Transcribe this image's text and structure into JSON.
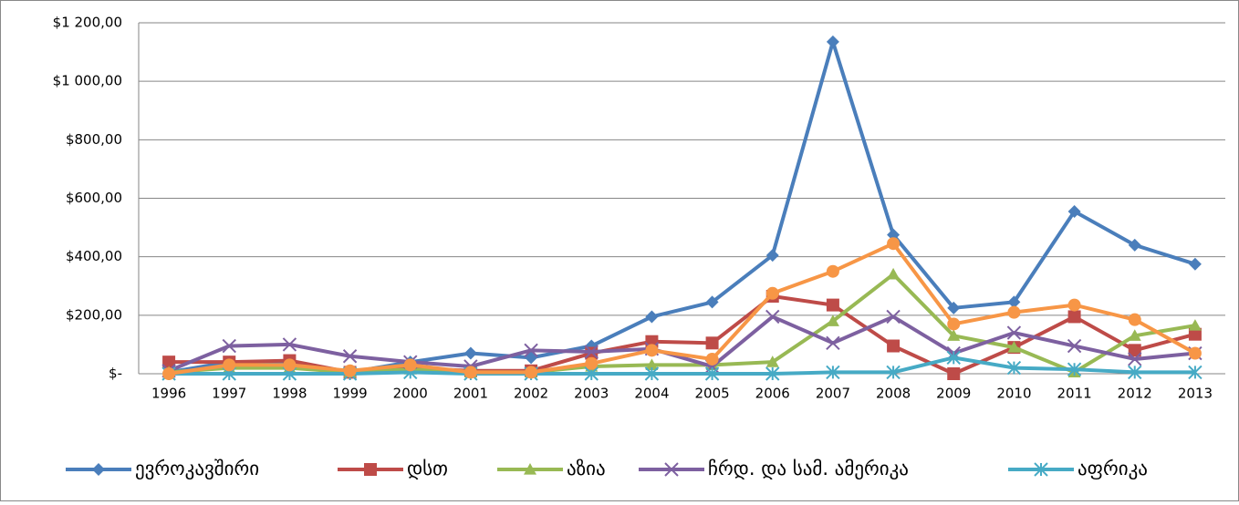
{
  "chart_data": {
    "type": "line",
    "categories": [
      "1996",
      "1997",
      "1998",
      "1999",
      "2000",
      "2001",
      "2002",
      "2003",
      "2004",
      "2005",
      "2006",
      "2007",
      "2008",
      "2009",
      "2010",
      "2011",
      "2012",
      "2013"
    ],
    "series": [
      {
        "name": "ევროკავშირი",
        "color": "#4a7ebb",
        "marker": "diamond",
        "values": [
          5,
          40,
          40,
          5,
          40,
          70,
          55,
          95,
          195,
          245,
          405,
          1135,
          475,
          225,
          245,
          555,
          440,
          375
        ]
      },
      {
        "name": "დსთ",
        "color": "#be4b48",
        "marker": "square",
        "values": [
          40,
          40,
          45,
          5,
          20,
          10,
          10,
          70,
          110,
          105,
          265,
          235,
          95,
          0,
          90,
          195,
          80,
          135
        ]
      },
      {
        "name": "აზია",
        "color": "#98b954",
        "marker": "triangle",
        "values": [
          5,
          20,
          20,
          5,
          15,
          5,
          5,
          25,
          30,
          30,
          40,
          180,
          340,
          130,
          90,
          5,
          130,
          165
        ]
      },
      {
        "name": "ჩრდ. და სამ. ამერიკა",
        "color": "#7d60a0",
        "marker": "x",
        "values": [
          10,
          95,
          100,
          60,
          40,
          25,
          80,
          75,
          85,
          25,
          195,
          105,
          195,
          70,
          140,
          95,
          50,
          70
        ]
      },
      {
        "name": "აფრიკა",
        "color": "#46aac5",
        "marker": "star",
        "values": [
          0,
          0,
          0,
          0,
          5,
          0,
          0,
          0,
          0,
          0,
          0,
          5,
          5,
          55,
          20,
          15,
          5,
          5
        ]
      },
      {
        "color": "#f79646",
        "marker": "circle",
        "values": [
          0,
          30,
          30,
          10,
          30,
          5,
          5,
          35,
          80,
          50,
          275,
          350,
          445,
          170,
          210,
          235,
          185,
          70
        ]
      }
    ],
    "ylim": [
      0,
      1200
    ],
    "yticks": [
      {
        "value": 0,
        "label": "$-"
      },
      {
        "value": 200,
        "label": "$200,00"
      },
      {
        "value": 400,
        "label": "$400,00"
      },
      {
        "value": 600,
        "label": "$600,00"
      },
      {
        "value": 800,
        "label": "$800,00"
      },
      {
        "value": 1000,
        "label": "$1 000,00"
      },
      {
        "value": 1200,
        "label": "$1 200,00"
      }
    ],
    "grid": true,
    "legend": "bottom"
  }
}
